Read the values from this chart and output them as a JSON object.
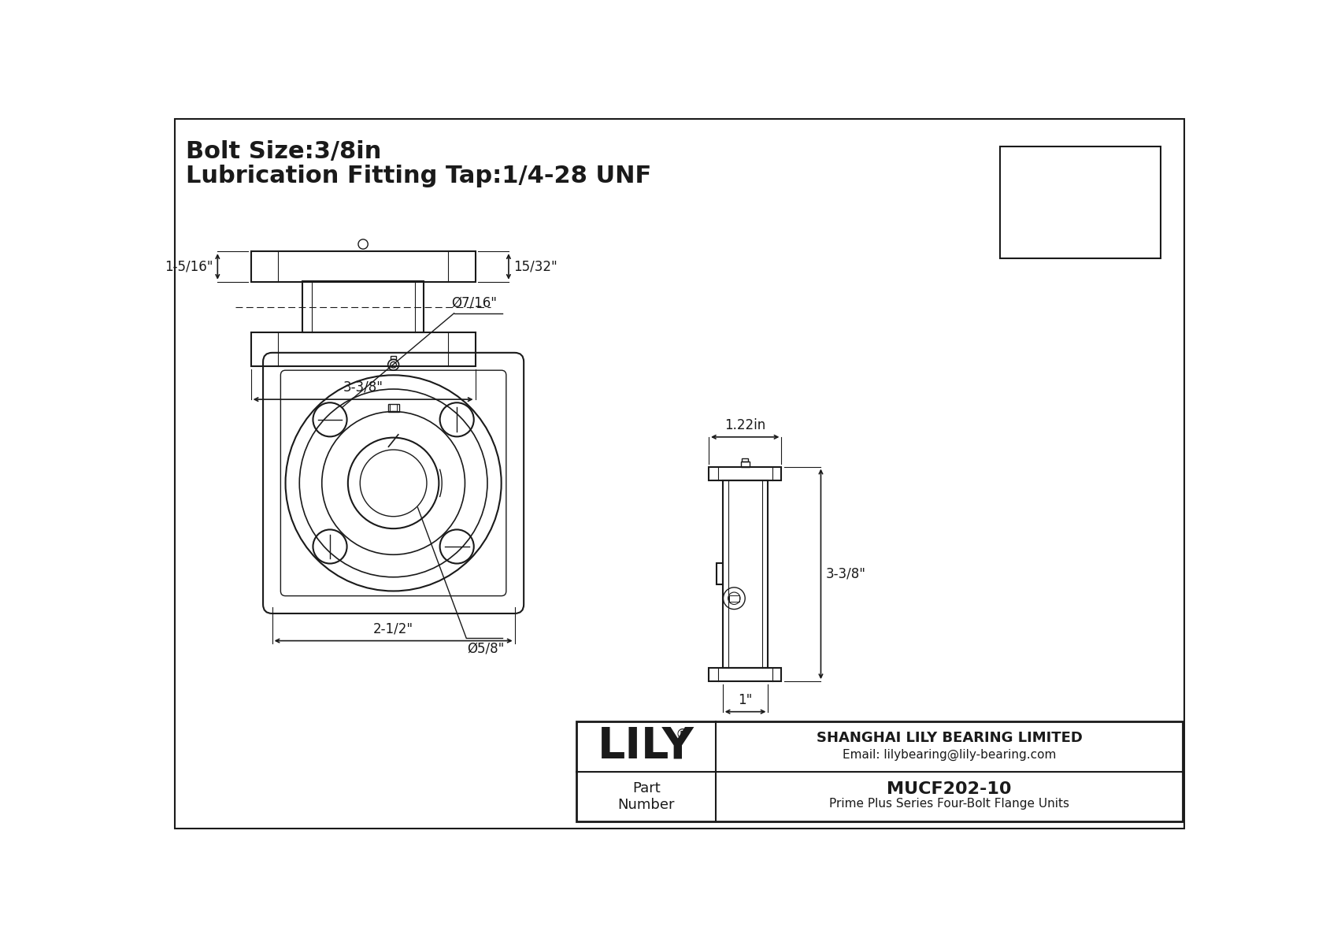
{
  "bg_color": "#ffffff",
  "line_color": "#1a1a1a",
  "title_line1": "Bolt Size:3/8in",
  "title_line2": "Lubrication Fitting Tap:1/4-28 UNF",
  "dim_bolt_hole": "Ø7/16\"",
  "dim_bore": "Ø5/8\"",
  "dim_width": "2-1/2\"",
  "dim_side_height": "3-3/8\"",
  "dim_side_width": "1.22in",
  "dim_side_bottom": "1\"",
  "dim_front_height": "1-5/16\"",
  "dim_front_width": "3-3/8\"",
  "dim_front_top": "15/32\"",
  "company_name": "SHANGHAI LILY BEARING LIMITED",
  "company_email": "Email: lilybearing@lily-bearing.com",
  "brand": "LILY",
  "brand_reg": "®",
  "part_label": "Part\nNumber",
  "part_number": "MUCF202-10",
  "part_desc": "Prime Plus Series Four-Bolt Flange Units"
}
